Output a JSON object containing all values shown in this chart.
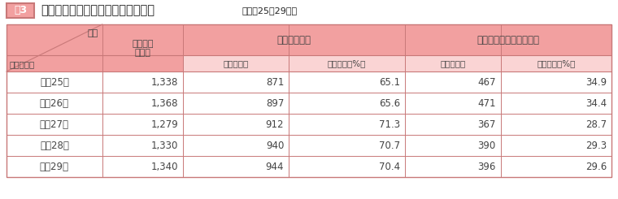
{
  "title_box": "表3",
  "title_main": "所得等報告書の提出件数とその内訳",
  "title_sub": "（平成25～29年）",
  "col_header1": "提出件数",
  "col_header1_sub": "（件）",
  "col_group1": "給与所得のみ",
  "col_group2": "給与所得以外の所得あり",
  "col_sub1": "件数（件）",
  "col_sub2": "構成割合（%）",
  "col_sub3": "件数（件）",
  "col_sub4": "構成割合（%）",
  "row_header_top": "区分",
  "row_header_bot": "年（暦年）",
  "rows": [
    [
      "平成25年",
      "1,338",
      "871",
      "65.1",
      "467",
      "34.9"
    ],
    [
      "平成26年",
      "1,368",
      "897",
      "65.6",
      "471",
      "34.4"
    ],
    [
      "平成27年",
      "1,279",
      "912",
      "71.3",
      "367",
      "28.7"
    ],
    [
      "平成28年",
      "1,330",
      "940",
      "70.7",
      "390",
      "29.3"
    ],
    [
      "平成29年",
      "1,340",
      "944",
      "70.4",
      "396",
      "29.6"
    ]
  ],
  "color_header_bg": "#F2A0A0",
  "color_header_light": "#FAD4D4",
  "color_border": "#C87878",
  "color_text": "#444444",
  "color_title_box_bg": "#F2A0A0",
  "color_title_box_text": "#FFFFFF"
}
